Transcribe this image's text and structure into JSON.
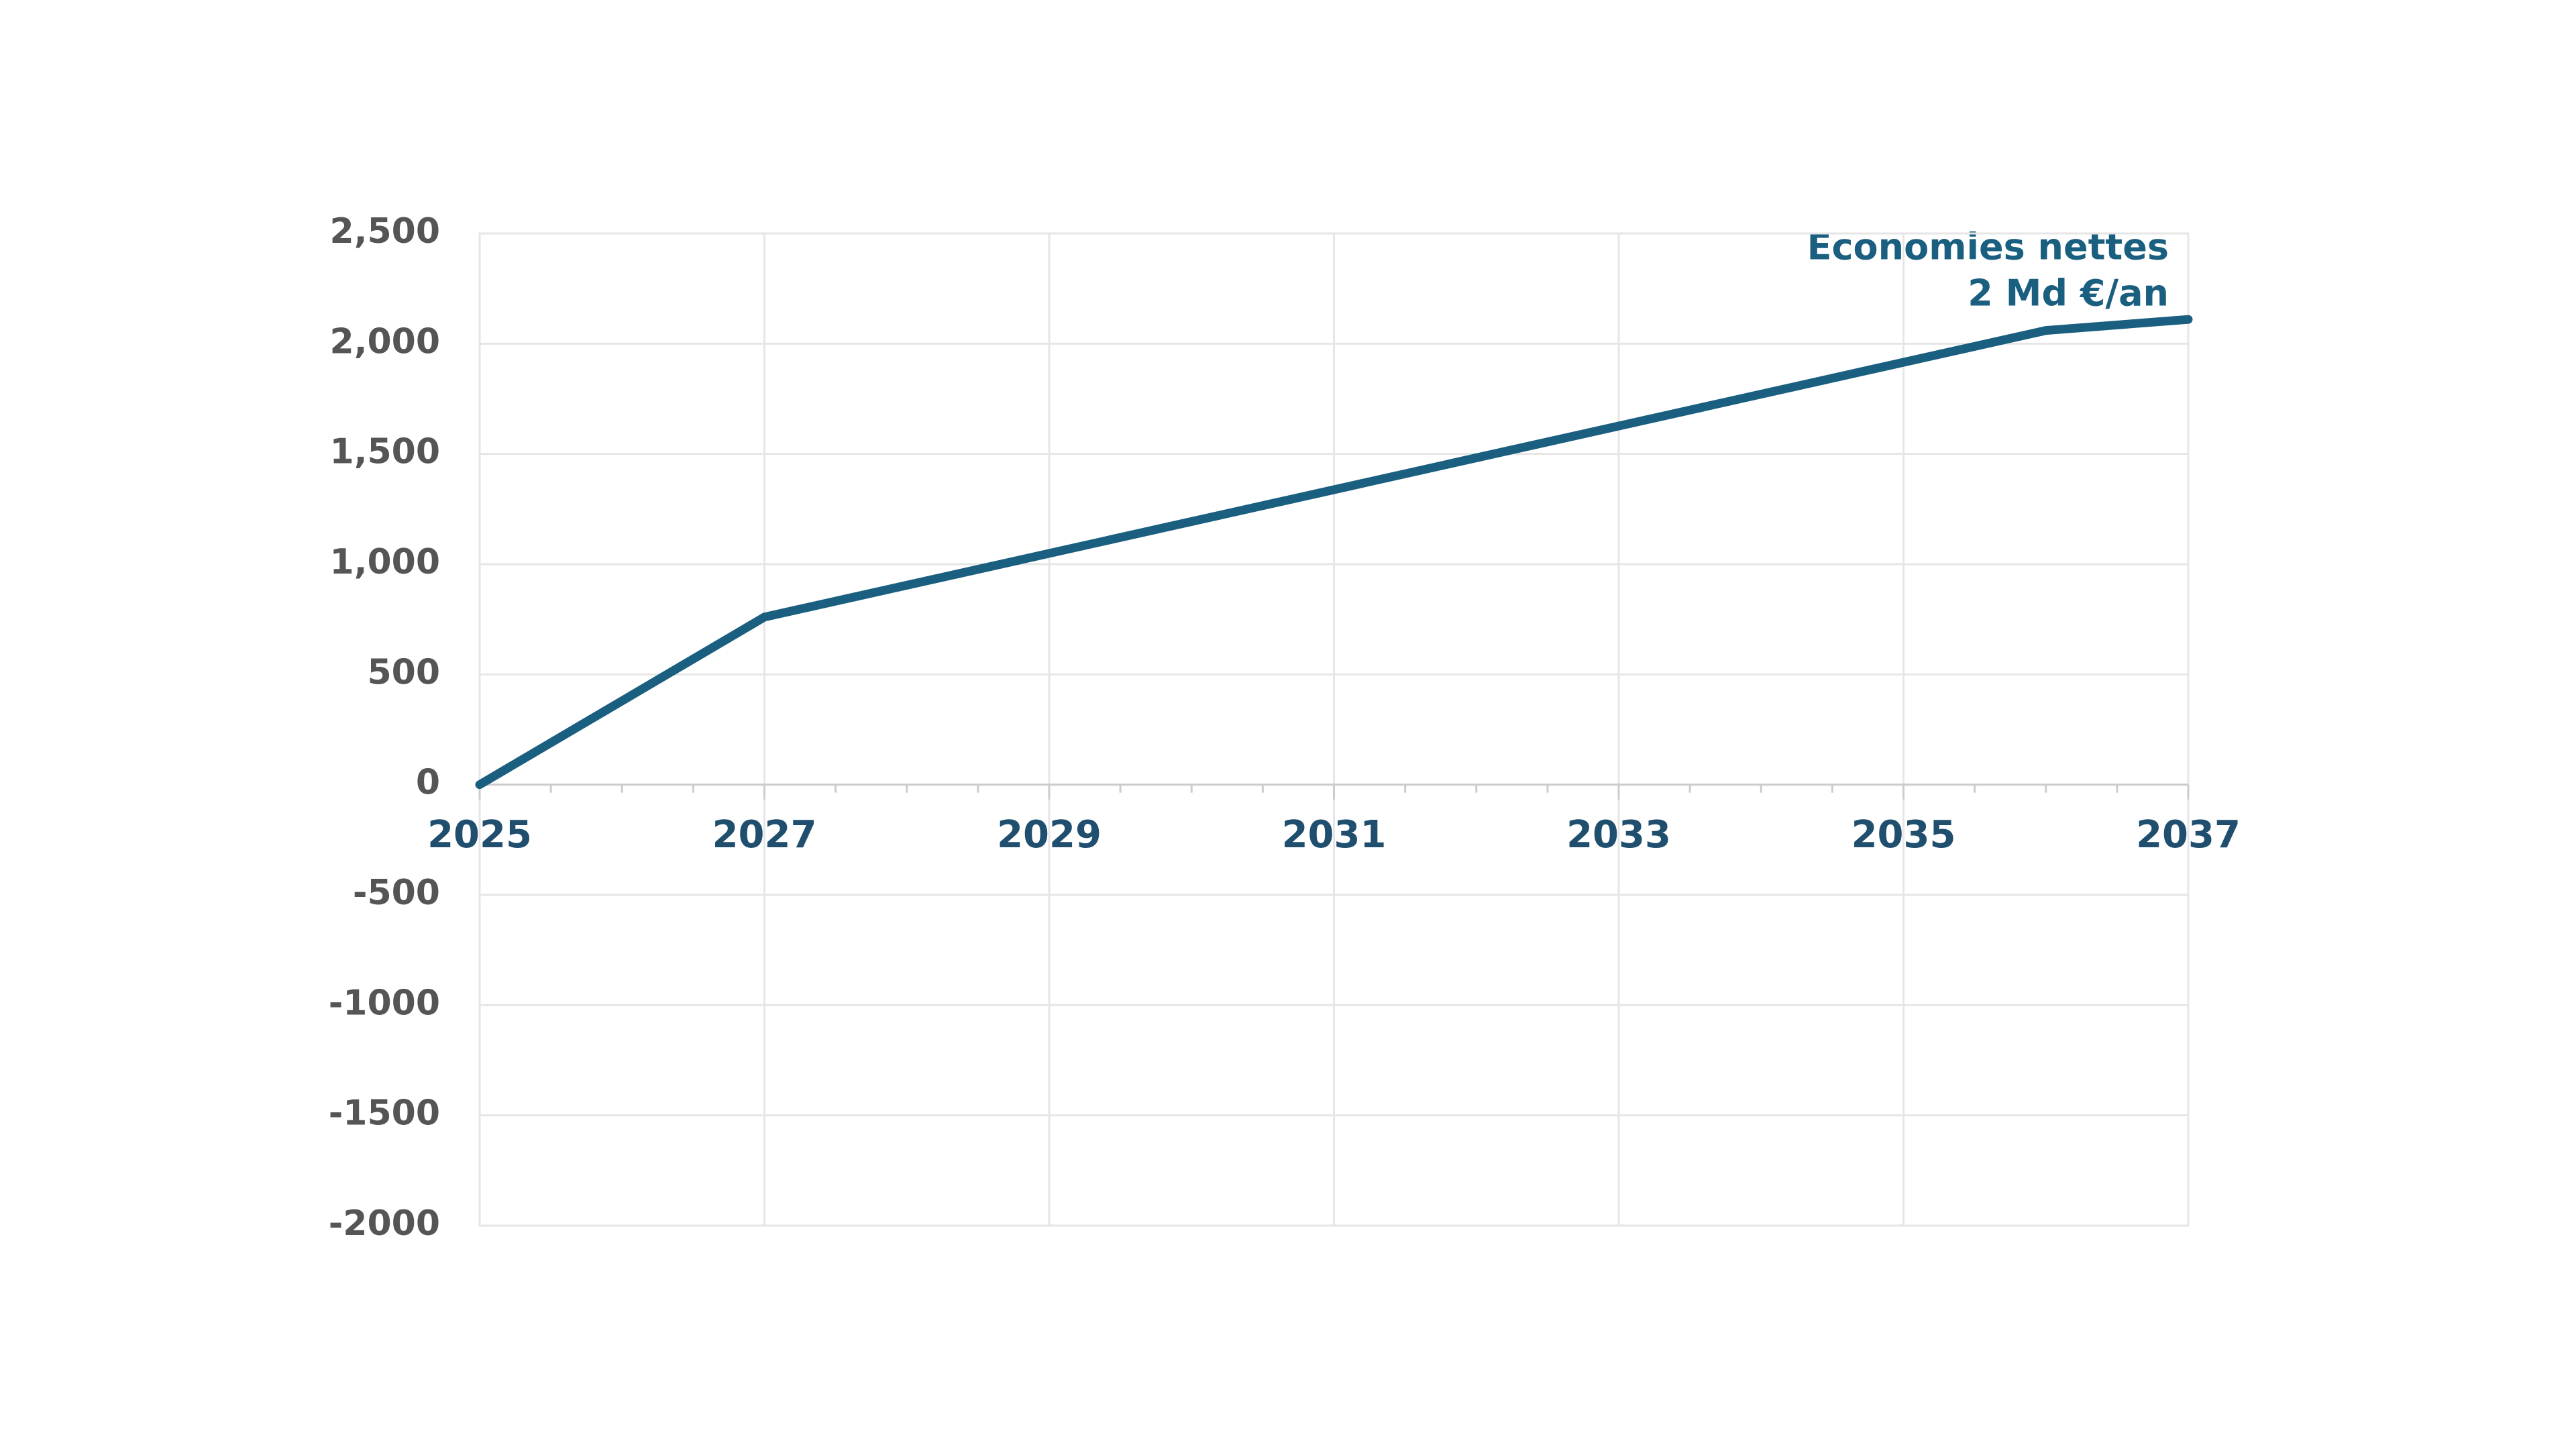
{
  "chart_data": {
    "type": "line",
    "annotation": [
      "Economies nettes",
      "2 Md €/an"
    ],
    "x": [
      2025,
      2027,
      2036,
      2037
    ],
    "series": [
      {
        "name": null,
        "color": "#1a5f80",
        "values": [
          0,
          760,
          2060,
          2110
        ]
      }
    ],
    "xlim": [
      2025,
      2037
    ],
    "xticks": [
      2025,
      2027,
      2029,
      2031,
      2033,
      2035,
      2037
    ],
    "ylim": [
      -2000,
      2500
    ],
    "yticks": [
      -2000,
      -1500,
      -1000,
      -500,
      0,
      500,
      {
        "value": 1000,
        "label": "1,000"
      },
      {
        "value": 1500,
        "label": "1,500"
      },
      {
        "value": 2000,
        "label": "2,000"
      },
      {
        "value": 2500,
        "label": "2,500"
      }
    ],
    "grid": true
  }
}
